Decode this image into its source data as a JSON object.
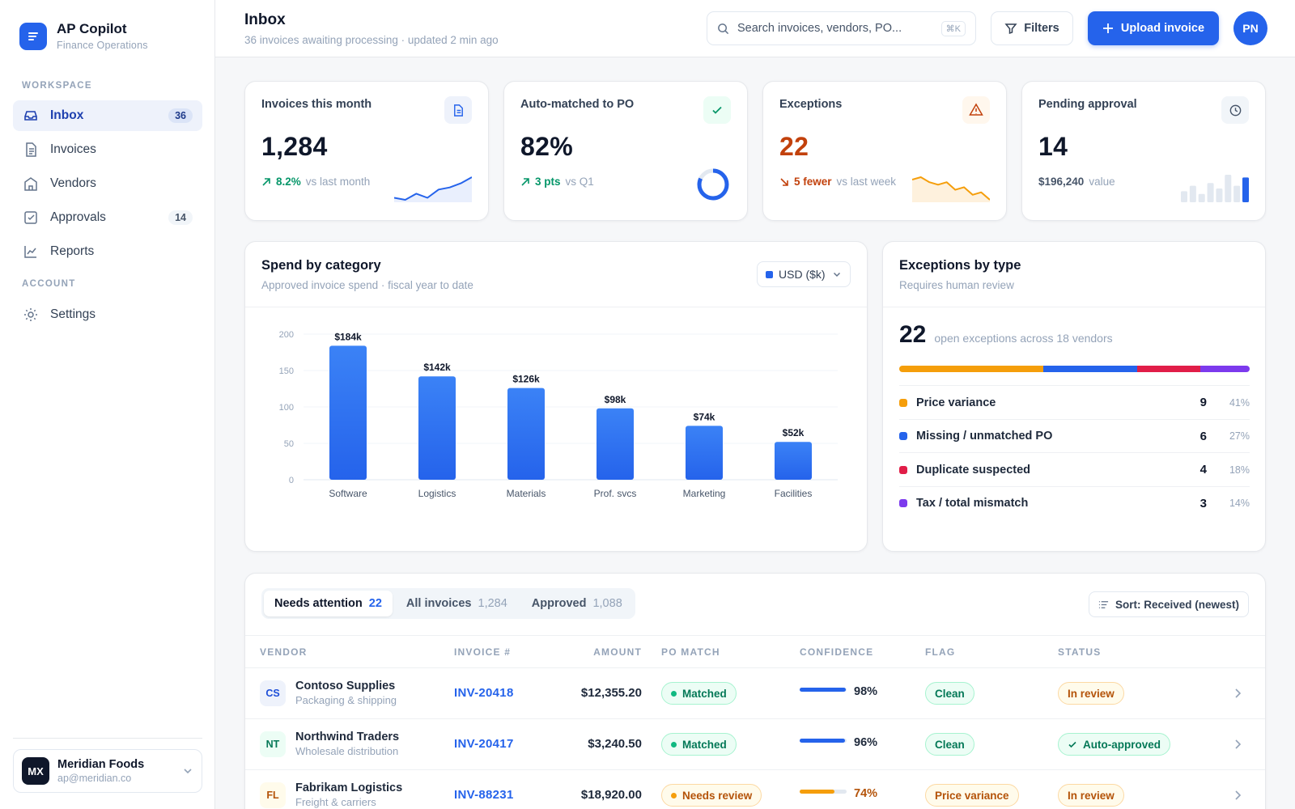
{
  "app": {
    "name": "AP Copilot",
    "subtitle": "Finance Operations"
  },
  "sidebar": {
    "workspace_label": "WORKSPACE",
    "account_label": "ACCOUNT",
    "items": [
      {
        "label": "Inbox",
        "count": "36",
        "icon": "inbox-icon",
        "active": true
      },
      {
        "label": "Invoices",
        "count": "",
        "icon": "document-icon"
      },
      {
        "label": "Vendors",
        "count": "",
        "icon": "building-icon"
      },
      {
        "label": "Approvals",
        "count": "14",
        "icon": "check-square-icon"
      },
      {
        "label": "Reports",
        "count": "",
        "icon": "chart-line-icon"
      }
    ],
    "settings_label": "Settings",
    "org": {
      "initials": "MX",
      "name": "Meridian Foods",
      "email": "ap@meridian.co"
    }
  },
  "header": {
    "title": "Inbox",
    "subtitle": "36 invoices awaiting processing · updated 2 min ago",
    "search_placeholder": "Search invoices, vendors, PO...",
    "search_shortcut": "⌘K",
    "filters_label": "Filters",
    "upload_label": "Upload invoice",
    "user_initials": "PN"
  },
  "kpis": [
    {
      "label": "Invoices this month",
      "value": "1,284",
      "delta": "8.2%",
      "delta_text": "vs last month",
      "trend": "up",
      "icon": "document-icon",
      "spark": [
        6,
        5,
        8,
        6,
        10,
        11,
        13,
        16
      ]
    },
    {
      "label": "Auto-matched to PO",
      "value": "82%",
      "delta": "3 pts",
      "delta_text": "vs Q1",
      "trend": "up",
      "icon": "check-icon",
      "ring_pct": 0.82
    },
    {
      "label": "Exceptions",
      "value": "22",
      "delta": "5 fewer",
      "delta_text": "vs last week",
      "trend": "down",
      "icon": "warning-icon",
      "spark": [
        14,
        15,
        13,
        12,
        13,
        10,
        11,
        8,
        9,
        6
      ]
    },
    {
      "label": "Pending approval",
      "value": "14",
      "delta": "$196,240",
      "delta_text": "value",
      "icon": "clock-icon",
      "bars": [
        4,
        6,
        3,
        7,
        5,
        10,
        6,
        9
      ]
    }
  ],
  "spend": {
    "title": "Spend by category",
    "subtitle": "Approved invoice spend · fiscal year to date",
    "currency": "USD ($k)"
  },
  "chart_data": {
    "type": "bar",
    "categories": [
      "Software",
      "Logistics",
      "Materials",
      "Prof. svcs",
      "Marketing",
      "Facilities"
    ],
    "values": [
      184,
      142,
      126,
      98,
      74,
      52
    ],
    "data_labels": [
      "$184k",
      "$142k",
      "$126k",
      "$98k",
      "$74k",
      "$52k"
    ],
    "yticks": [
      0,
      50,
      100,
      150,
      200
    ],
    "ylim": [
      0,
      200
    ],
    "grid": true,
    "color": "#2563eb"
  },
  "exceptions": {
    "title": "Exceptions by type",
    "subtitle": "Requires human review",
    "total": "22",
    "total_text": "open exceptions across 18 vendors",
    "types": [
      {
        "label": "Price variance",
        "count": "9",
        "pct": "41%",
        "share": 41,
        "color": "#f59e0b"
      },
      {
        "label": "Missing / unmatched PO",
        "count": "6",
        "pct": "27%",
        "share": 27,
        "color": "#2563eb"
      },
      {
        "label": "Duplicate suspected",
        "count": "4",
        "pct": "18%",
        "share": 18,
        "color": "#e11d48"
      },
      {
        "label": "Tax / total mismatch",
        "count": "3",
        "pct": "14%",
        "share": 14,
        "color": "#7c3aed"
      }
    ]
  },
  "table": {
    "tabs": [
      {
        "label": "Needs attention",
        "count": "22",
        "active": true
      },
      {
        "label": "All invoices",
        "count": "1,284"
      },
      {
        "label": "Approved",
        "count": "1,088"
      }
    ],
    "sort_label": "Sort: Received (newest)",
    "columns": [
      "VENDOR",
      "INVOICE #",
      "AMOUNT",
      "PO MATCH",
      "CONFIDENCE",
      "FLAG",
      "STATUS"
    ],
    "rows": [
      {
        "initials": "CS",
        "vendor": "Contoso Supplies",
        "category": "Packaging & shipping",
        "invoice": "INV-20418",
        "amount": "$12,355.20",
        "po_match": "Matched",
        "po_tone": "green",
        "confidence": "98%",
        "conf_value": 0.98,
        "conf_tone": "blue",
        "flag": "Clean",
        "flag_tone": "green",
        "status": "In review",
        "status_tone": "amber",
        "status_check": false,
        "av_tone": "blue"
      },
      {
        "initials": "NT",
        "vendor": "Northwind Traders",
        "category": "Wholesale distribution",
        "invoice": "INV-20417",
        "amount": "$3,240.50",
        "po_match": "Matched",
        "po_tone": "green",
        "confidence": "96%",
        "conf_value": 0.96,
        "conf_tone": "blue",
        "flag": "Clean",
        "flag_tone": "green",
        "status": "Auto-approved",
        "status_tone": "green",
        "status_check": true,
        "av_tone": "green"
      },
      {
        "initials": "FL",
        "vendor": "Fabrikam Logistics",
        "category": "Freight & carriers",
        "invoice": "INV-88231",
        "amount": "$18,920.00",
        "po_match": "Needs review",
        "po_tone": "amber",
        "confidence": "74%",
        "conf_value": 0.74,
        "conf_tone": "amber",
        "flag": "Price variance",
        "flag_tone": "amber",
        "status": "In review",
        "status_tone": "amber",
        "status_check": false,
        "av_tone": "amber"
      }
    ]
  }
}
